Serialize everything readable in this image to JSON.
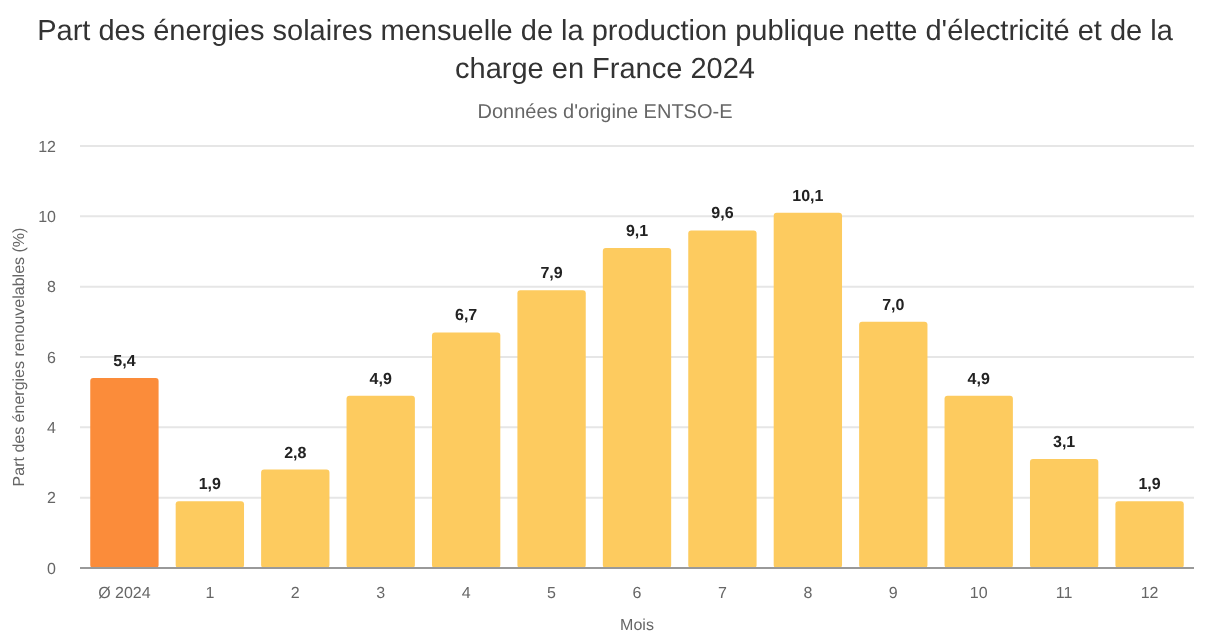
{
  "chart_data": {
    "type": "bar",
    "title": "Part des énergies solaires mensuelle de la production publique nette d'électricité et de la charge en France 2024",
    "subtitle": "Données d'origine ENTSO-E",
    "xlabel": "Mois",
    "ylabel": "Part des énergies renouvelables (%)",
    "categories": [
      "Ø 2024",
      "1",
      "2",
      "3",
      "4",
      "5",
      "6",
      "7",
      "8",
      "9",
      "10",
      "11",
      "12"
    ],
    "values": [
      5.4,
      1.9,
      2.8,
      4.9,
      6.7,
      7.9,
      9.1,
      9.6,
      10.1,
      7.0,
      4.9,
      3.1,
      1.9
    ],
    "value_labels": [
      "5,4",
      "1,9",
      "2,8",
      "4,9",
      "6,7",
      "7,9",
      "9,1",
      "9,6",
      "10,1",
      "7,0",
      "4,9",
      "3,1",
      "1,9"
    ],
    "colors": [
      "#fb8c3a",
      "#fdcb5f",
      "#fdcb5f",
      "#fdcb5f",
      "#fdcb5f",
      "#fdcb5f",
      "#fdcb5f",
      "#fdcb5f",
      "#fdcb5f",
      "#fdcb5f",
      "#fdcb5f",
      "#fdcb5f",
      "#fdcb5f"
    ],
    "ylim": [
      0,
      12
    ],
    "yticks": [
      0,
      2,
      4,
      6,
      8,
      10,
      12
    ],
    "grid": "y"
  }
}
